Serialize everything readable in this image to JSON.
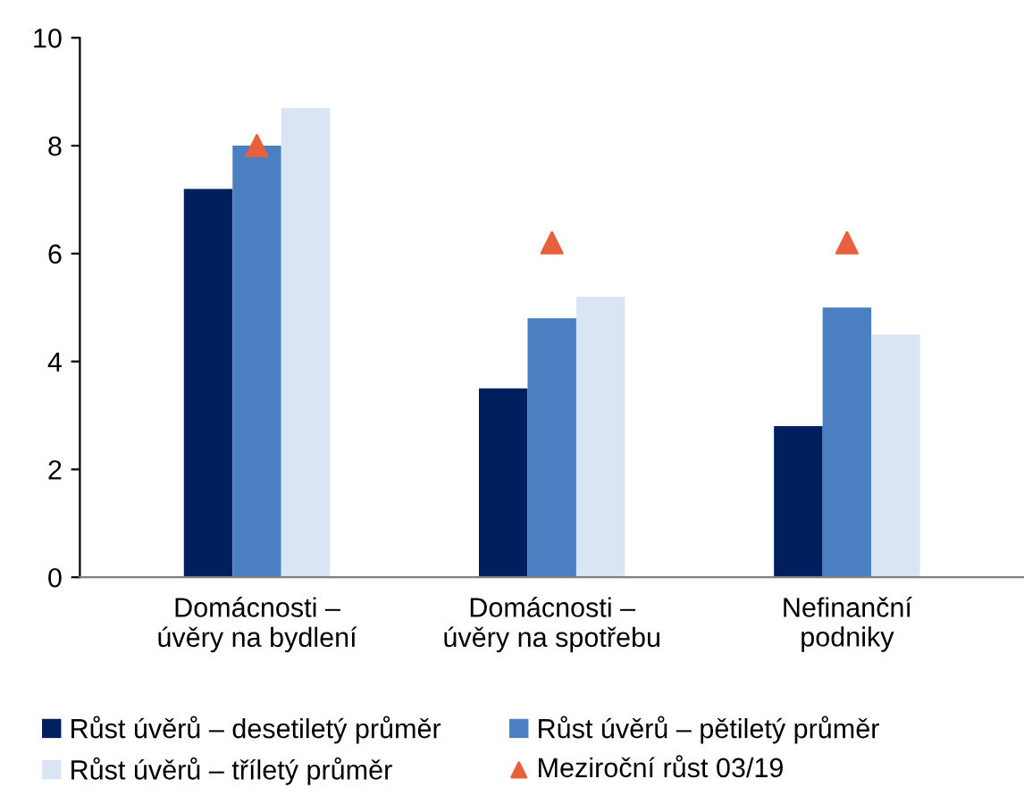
{
  "chart_data": {
    "type": "bar",
    "categories": [
      "Domácnosti –\núvěry na bydlení",
      "Domácnosti –\núvěry na spotřebu",
      "Nefinanční\npodniky"
    ],
    "series": [
      {
        "name": "Růst úvěrů – desetiletý průměr",
        "color": "#001f5f",
        "values": [
          7.2,
          3.5,
          2.8
        ]
      },
      {
        "name": "Růst úvěrů – pětiletý průměr",
        "color": "#4a7fc1",
        "values": [
          8.0,
          4.8,
          5.0
        ]
      },
      {
        "name": "Růst úvěrů – tříletý průměr",
        "color": "#dae5f3",
        "values": [
          8.7,
          5.2,
          4.5
        ]
      },
      {
        "name": "Meziroční růst 03/19",
        "type": "scatter",
        "marker": "triangle",
        "color": "#e8603c",
        "values": [
          8.0,
          6.2,
          6.2
        ]
      }
    ],
    "ylim": [
      0,
      10
    ],
    "yticks": [
      0,
      2,
      4,
      6,
      8,
      10
    ],
    "grid": false,
    "legend": "bottom"
  }
}
